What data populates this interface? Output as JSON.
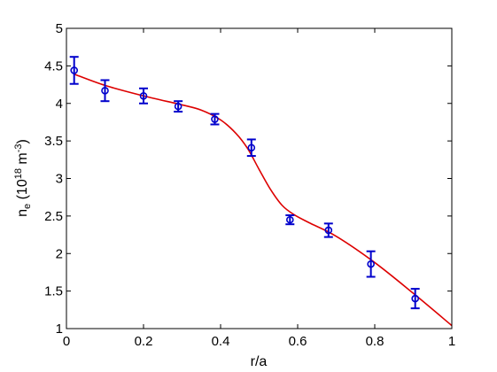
{
  "chart_data": {
    "type": "scatter",
    "xlabel": "r/a",
    "ylabel": {
      "base": "n",
      "sub": "e",
      "paren_open": " (10",
      "sup1": "18",
      "unit": " m",
      "sup2": "-3",
      "paren_close": ")"
    },
    "xlim": [
      0,
      1
    ],
    "ylim": [
      1,
      5
    ],
    "x_ticks": [
      0,
      0.2,
      0.4,
      0.6,
      0.8,
      1
    ],
    "x_tick_labels": [
      "0",
      "0.2",
      "0.4",
      "0.6",
      "0.8",
      "1"
    ],
    "y_ticks": [
      1,
      1.5,
      2,
      2.5,
      3,
      3.5,
      4,
      4.5,
      5
    ],
    "y_tick_labels": [
      "1",
      "1.5",
      "2",
      "2.5",
      "3",
      "3.5",
      "4",
      "4.5",
      "5"
    ],
    "grid": false,
    "series": [
      {
        "kind": "markers-with-errorbars",
        "color": "#0000cc",
        "marker": "circle",
        "points": [
          {
            "x": 0.02,
            "y": 4.44,
            "err": 0.18
          },
          {
            "x": 0.1,
            "y": 4.17,
            "err": 0.14
          },
          {
            "x": 0.2,
            "y": 4.1,
            "err": 0.1
          },
          {
            "x": 0.29,
            "y": 3.96,
            "err": 0.07
          },
          {
            "x": 0.385,
            "y": 3.79,
            "err": 0.07
          },
          {
            "x": 0.48,
            "y": 3.41,
            "err": 0.11
          },
          {
            "x": 0.58,
            "y": 2.45,
            "err": 0.06
          },
          {
            "x": 0.68,
            "y": 2.31,
            "err": 0.09
          },
          {
            "x": 0.79,
            "y": 1.86,
            "err": 0.17
          },
          {
            "x": 0.905,
            "y": 1.4,
            "err": 0.13
          }
        ]
      },
      {
        "kind": "line",
        "color": "#dd0000",
        "points": [
          {
            "x": 0.02,
            "y": 4.39
          },
          {
            "x": 0.1,
            "y": 4.24
          },
          {
            "x": 0.2,
            "y": 4.1
          },
          {
            "x": 0.3,
            "y": 3.98
          },
          {
            "x": 0.35,
            "y": 3.91
          },
          {
            "x": 0.4,
            "y": 3.78
          },
          {
            "x": 0.44,
            "y": 3.6
          },
          {
            "x": 0.47,
            "y": 3.4
          },
          {
            "x": 0.5,
            "y": 3.12
          },
          {
            "x": 0.53,
            "y": 2.85
          },
          {
            "x": 0.56,
            "y": 2.64
          },
          {
            "x": 0.59,
            "y": 2.52
          },
          {
            "x": 0.63,
            "y": 2.41
          },
          {
            "x": 0.7,
            "y": 2.23
          },
          {
            "x": 0.8,
            "y": 1.88
          },
          {
            "x": 0.9,
            "y": 1.47
          },
          {
            "x": 1.0,
            "y": 1.04
          }
        ]
      }
    ]
  }
}
